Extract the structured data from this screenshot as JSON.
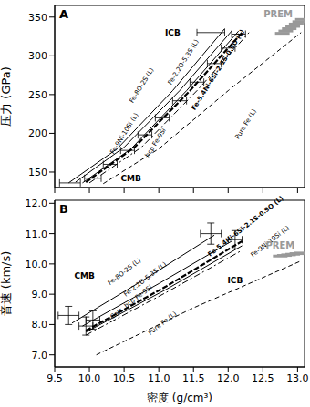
{
  "chart_data": [
    {
      "type": "line",
      "title": "A",
      "y_label": "压力 (GPa)",
      "tick_labels": "y",
      "xlim": [
        9.5,
        13.1
      ],
      "xticks": [
        9.5,
        {
          "value": 10,
          "label": "10.0"
        },
        10.5,
        {
          "value": 11,
          "label": "11.0"
        },
        11.5,
        {
          "value": 12,
          "label": "12.0"
        },
        12.5,
        {
          "value": 13,
          "label": "13.0"
        }
      ],
      "ylim": [
        130,
        365
      ],
      "yticks": [
        150,
        200,
        250,
        300,
        350
      ],
      "series": [
        {
          "name": "Fe-8O-2S (L)",
          "color": "#000000",
          "line_style": "solid",
          "label_at": [
            10.75,
            262
          ],
          "x": [
            9.7,
            10.4,
            11.2,
            11.95
          ],
          "values": [
            136,
            180,
            255,
            335
          ]
        },
        {
          "name": "Fe-2.2O-5.3S (L)",
          "color": "#000000",
          "line_style": "solid",
          "label_at": [
            11.35,
            292
          ],
          "x": [
            9.8,
            10.5,
            11.3,
            12.05
          ],
          "values": [
            137,
            182,
            255,
            332
          ]
        },
        {
          "name": "Fe-5.4Ni-6Si-2.1S-0.9O (L)",
          "color": "#000000",
          "line_style": "bold-dashed",
          "label_at": [
            11.85,
            282
          ],
          "x": [
            9.95,
            10.65,
            11.45,
            12.2
          ],
          "values": [
            137,
            182,
            255,
            330
          ]
        },
        {
          "name": "Fe-9Ni-10Si (L)",
          "color": "#000000",
          "line_style": "solid",
          "label_at": [
            10.5,
            200
          ],
          "x": [
            9.9,
            10.6,
            11.4,
            12.15
          ],
          "values": [
            136,
            180,
            255,
            332
          ]
        },
        {
          "name": "hcp Fe-9Si",
          "color": "#000000",
          "line_style": "dashdot",
          "label_at": [
            10.95,
            188
          ],
          "x": [
            10.0,
            10.75,
            11.55,
            12.3
          ],
          "values": [
            136,
            182,
            255,
            330
          ]
        },
        {
          "name": "Pure Fe (L)",
          "color": "#000000",
          "line_style": "dashed",
          "label_at": [
            12.25,
            212
          ],
          "x": [
            10.2,
            11.0,
            12.0,
            13.05
          ],
          "values": [
            135,
            180,
            255,
            330
          ]
        },
        {
          "name": "PREM",
          "type": "scatter",
          "marker": "dash",
          "color": "#999999",
          "label_at": [
            12.72,
            354
          ],
          "x": [
            12.78,
            12.83,
            12.88,
            12.93,
            12.98,
            13.03,
            13.07
          ],
          "values": [
            329,
            332,
            335,
            338,
            341,
            344,
            347
          ]
        }
      ],
      "error_points": [
        {
          "x": 9.72,
          "y": 136,
          "xerr": 0.15,
          "yerr": 0
        },
        {
          "x": 10.05,
          "y": 142,
          "xerr": 0.12,
          "yerr": 0
        },
        {
          "x": 10.3,
          "y": 160,
          "xerr": 0.1,
          "yerr": 0
        },
        {
          "x": 10.55,
          "y": 178,
          "xerr": 0.1,
          "yerr": 0
        },
        {
          "x": 10.8,
          "y": 198,
          "xerr": 0.1,
          "yerr": 0
        },
        {
          "x": 11.05,
          "y": 220,
          "xerr": 0.1,
          "yerr": 0
        },
        {
          "x": 11.3,
          "y": 242,
          "xerr": 0.1,
          "yerr": 0
        },
        {
          "x": 11.55,
          "y": 266,
          "xerr": 0.1,
          "yerr": 0
        },
        {
          "x": 11.8,
          "y": 290,
          "xerr": 0.1,
          "yerr": 0
        },
        {
          "x": 12.0,
          "y": 310,
          "xerr": 0.1,
          "yerr": 0
        },
        {
          "x": 11.75,
          "y": 330,
          "xerr": 0.2,
          "yerr": 0
        },
        {
          "x": 12.15,
          "y": 328,
          "xerr": 0.1,
          "yerr": 0
        }
      ],
      "annotations": [
        {
          "text": "ICB",
          "x": 11.2,
          "y": 330
        },
        {
          "text": "CMB",
          "x": 10.6,
          "y": 142
        }
      ]
    },
    {
      "type": "line",
      "title": "B",
      "y_label": "音速 (km/s)",
      "x_label": "密度 (g/cm³)",
      "xlim": [
        9.5,
        13.1
      ],
      "xticks": [
        9.5,
        {
          "value": 10,
          "label": "10.0"
        },
        10.5,
        {
          "value": 11,
          "label": "11.0"
        },
        11.5,
        {
          "value": 12,
          "label": "12.0"
        },
        12.5,
        {
          "value": 13,
          "label": "13.0"
        }
      ],
      "ylim": [
        6.6,
        12.1
      ],
      "yticks": [
        {
          "value": 7,
          "label": "7.0"
        },
        {
          "value": 8,
          "label": "8.0"
        },
        {
          "value": 9,
          "label": "9.0"
        },
        {
          "value": 10,
          "label": "10.0"
        },
        {
          "value": 11,
          "label": "11.0"
        },
        {
          "value": 12,
          "label": "12.0"
        }
      ],
      "series": [
        {
          "name": "Fe-8O-2S (L)",
          "color": "#000000",
          "line_style": "solid",
          "label_at": [
            10.5,
            9.75
          ],
          "x": [
            9.75,
            10.8,
            11.8
          ],
          "values": [
            8.05,
            9.5,
            10.95
          ]
        },
        {
          "name": "Fe-2.2O-5.3S (L)",
          "color": "#000000",
          "line_style": "solid",
          "label_at": [
            10.8,
            9.5
          ],
          "x": [
            9.9,
            11.0,
            12.05
          ],
          "values": [
            7.95,
            9.35,
            10.75
          ]
        },
        {
          "name": "Fe-5.4Ni-6Si-2.1S-0.9O (L)",
          "color": "#000000",
          "line_style": "bold-dashed",
          "label_at": [
            12.25,
            11.25
          ],
          "x": [
            9.95,
            11.1,
            12.2
          ],
          "values": [
            7.8,
            9.25,
            10.75
          ]
        },
        {
          "name": "Fe-9Ni-10Si (L)",
          "color": "#000000",
          "line_style": "solid",
          "label_at": [
            12.6,
            10.75
          ],
          "x": [
            9.95,
            11.1,
            12.2
          ],
          "values": [
            7.75,
            9.15,
            10.6
          ]
        },
        {
          "name": "Calc. hcp Fe-9Si",
          "color": "#000000",
          "line_style": "dashdot",
          "label_at": [
            10.6,
            8.75
          ],
          "x": [
            9.95,
            11.1,
            12.2
          ],
          "values": [
            7.65,
            9.05,
            10.45
          ]
        },
        {
          "name": "Pure Fe (L)",
          "color": "#000000",
          "line_style": "dashed",
          "label_at": [
            11.05,
            8.05
          ],
          "x": [
            10.1,
            11.5,
            13.05
          ],
          "values": [
            7.0,
            8.55,
            10.1
          ]
        },
        {
          "name": "PREM",
          "type": "scatter",
          "marker": "dash",
          "color": "#999999",
          "label_at": [
            12.75,
            10.6
          ],
          "x": [
            12.75,
            12.81,
            12.87,
            12.93,
            12.99,
            13.05
          ],
          "values": [
            10.26,
            10.28,
            10.3,
            10.32,
            10.34,
            10.36
          ]
        }
      ],
      "error_points": [
        {
          "x": 9.7,
          "y": 8.3,
          "xerr": 0.15,
          "yerr": 0.3
        },
        {
          "x": 9.95,
          "y": 7.95,
          "xerr": 0.1,
          "yerr": 0.3
        },
        {
          "x": 10.05,
          "y": 8.15,
          "xerr": 0.1,
          "yerr": 0.3
        },
        {
          "x": 11.75,
          "y": 11.0,
          "xerr": 0.15,
          "yerr": 0.35
        },
        {
          "x": 12.1,
          "y": 10.8,
          "xerr": 0.1,
          "yerr": 0.3
        }
      ],
      "annotations": [
        {
          "text": "CMB",
          "x": 9.93,
          "y": 9.6
        },
        {
          "text": "ICB",
          "x": 12.1,
          "y": 9.45
        }
      ]
    }
  ]
}
